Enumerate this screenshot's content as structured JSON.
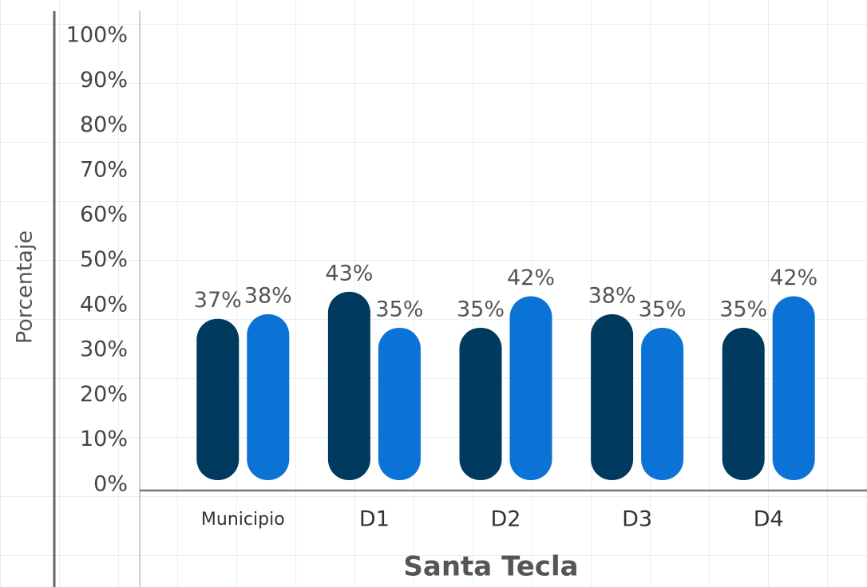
{
  "chart_data": {
    "type": "bar",
    "categories": [
      "Municipio",
      "D1",
      "D2",
      "D3",
      "D4"
    ],
    "series": [
      {
        "color": "#003a5e",
        "values": [
          37,
          43,
          35,
          38,
          35
        ],
        "value_labels": [
          "37%",
          "43%",
          "35%",
          "38%",
          "35%"
        ]
      },
      {
        "color": "#0b73d6",
        "values": [
          38,
          35,
          42,
          35,
          42
        ],
        "value_labels": [
          "38%",
          "35%",
          "42%",
          "35%",
          "42%"
        ]
      }
    ],
    "ylim": [
      0,
      100
    ],
    "yticks": [
      {
        "value": 0,
        "label": "0%"
      },
      {
        "value": 10,
        "label": "10%"
      },
      {
        "value": 20,
        "label": "20%"
      },
      {
        "value": 30,
        "label": "30%"
      },
      {
        "value": 40,
        "label": "40%"
      },
      {
        "value": 50,
        "label": "50%"
      },
      {
        "value": 60,
        "label": "60%"
      },
      {
        "value": 70,
        "label": "70%"
      },
      {
        "value": 80,
        "label": "80%"
      },
      {
        "value": 90,
        "label": "90%"
      },
      {
        "value": 100,
        "label": "100%"
      }
    ],
    "ylabel": "Porcentaje",
    "xlabel": "Santa Tecla"
  }
}
